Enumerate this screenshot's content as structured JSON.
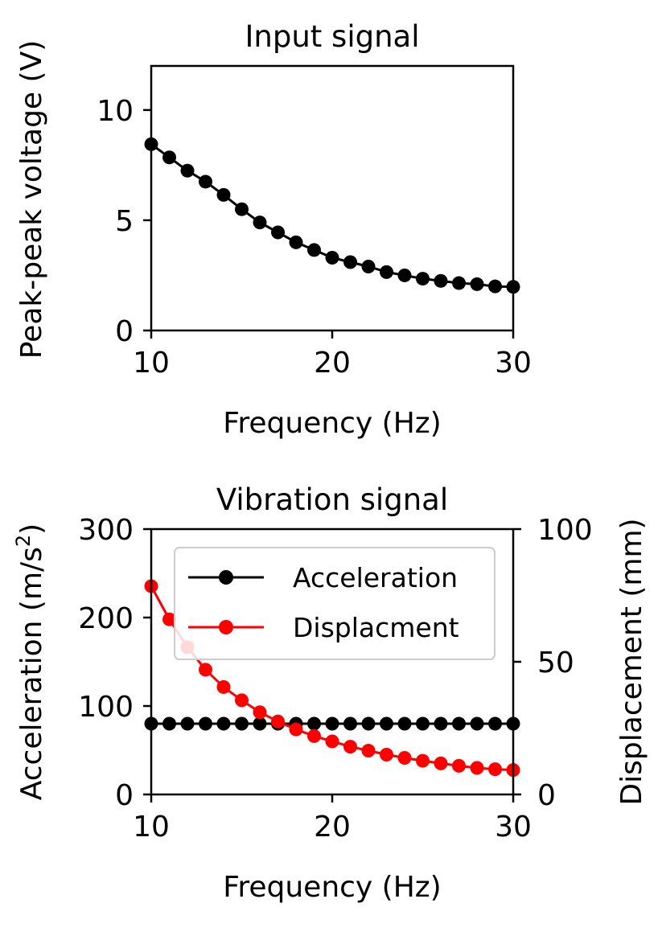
{
  "chart_data": [
    {
      "type": "line",
      "title": "Input signal",
      "xlabel": "Frequency (Hz)",
      "ylabel": "Peak-peak voltage (V)",
      "xlim": [
        10,
        30
      ],
      "ylim": [
        0,
        12
      ],
      "xticks": [
        "10",
        "20",
        "30"
      ],
      "yticks": [
        "0",
        "5",
        "10"
      ],
      "grid": false,
      "legend": "none",
      "series": [
        {
          "color": "#000000",
          "x": [
            10,
            11,
            12,
            13,
            14,
            15,
            16,
            17,
            18,
            19,
            20,
            21,
            22,
            23,
            24,
            25,
            26,
            27,
            28,
            29,
            30
          ],
          "values": [
            8.45,
            7.85,
            7.25,
            6.75,
            6.15,
            5.5,
            4.9,
            4.45,
            4.0,
            3.65,
            3.3,
            3.1,
            2.9,
            2.65,
            2.5,
            2.35,
            2.25,
            2.15,
            2.1,
            2.0,
            1.98
          ]
        }
      ]
    },
    {
      "type": "line",
      "title": "Vibration signal",
      "xlabel": "Frequency (Hz)",
      "ylabel": "Acceleration (m/s",
      "ylabel_sup": "2",
      "ylabel_end": ")",
      "y2label": "Displacement (mm)",
      "xlim": [
        10,
        30
      ],
      "ylim": [
        0,
        300
      ],
      "y2lim": [
        0,
        100
      ],
      "xticks": [
        "10",
        "20",
        "30"
      ],
      "yticks": [
        "0",
        "100",
        "200",
        "300"
      ],
      "y2ticks": [
        "0",
        "50",
        "100"
      ],
      "grid": false,
      "legend": "top-right",
      "series": [
        {
          "name": "Acceleration",
          "axis": "left",
          "color": "#000000",
          "x": [
            10,
            11,
            12,
            13,
            14,
            15,
            16,
            17,
            18,
            19,
            20,
            21,
            22,
            23,
            24,
            25,
            26,
            27,
            28,
            29,
            30
          ],
          "values": [
            80,
            80,
            80,
            80,
            80,
            80,
            80,
            80,
            80,
            80,
            80,
            80,
            80,
            80,
            80,
            80,
            80,
            80,
            80,
            80,
            80
          ]
        },
        {
          "name": "Displacment",
          "axis": "right",
          "color": "#ff0000",
          "x": [
            10,
            11,
            12,
            13,
            14,
            15,
            16,
            17,
            18,
            19,
            20,
            21,
            22,
            23,
            24,
            25,
            26,
            27,
            28,
            29,
            30
          ],
          "values": [
            78.5,
            66,
            55.5,
            47,
            40.5,
            35.5,
            31,
            27.5,
            24.5,
            22,
            20,
            18,
            16.5,
            15,
            13.8,
            12.7,
            11.7,
            10.8,
            10,
            9.5,
            9.2
          ]
        }
      ]
    }
  ]
}
